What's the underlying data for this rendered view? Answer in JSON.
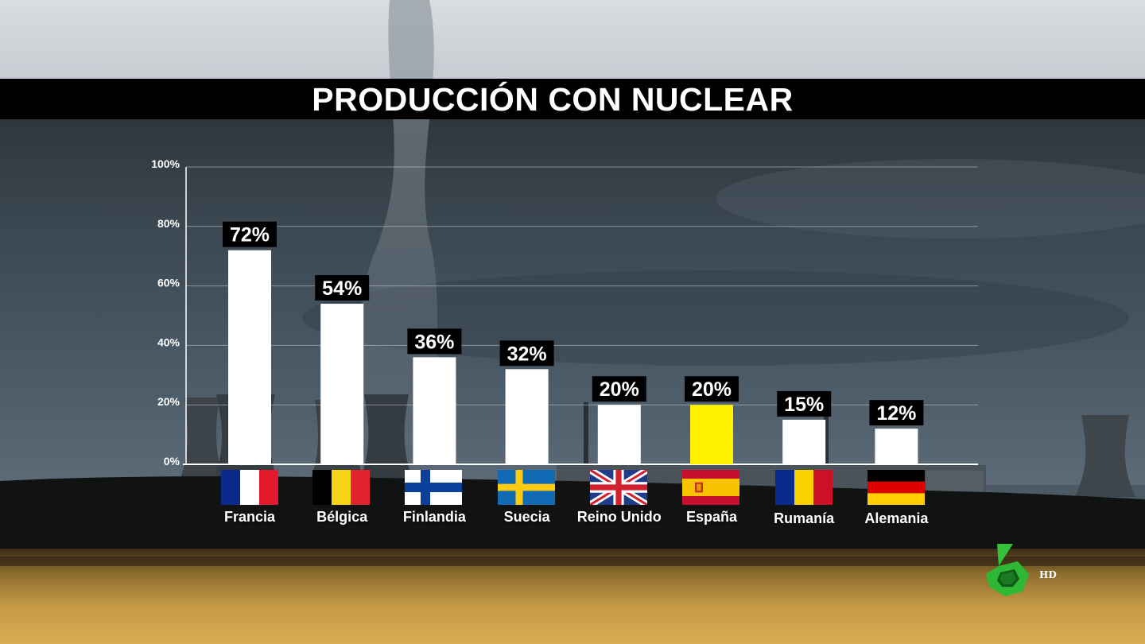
{
  "title": "PRODUCCIÓN CON NUCLEAR",
  "chart_data": {
    "type": "bar",
    "categories": [
      "Francia",
      "Bélgica",
      "Finlandia",
      "Suecia",
      "Reino Unido",
      "España",
      "Rumanía",
      "Alemania"
    ],
    "values": [
      72,
      54,
      36,
      32,
      20,
      20,
      15,
      12
    ],
    "value_labels": [
      "72%",
      "54%",
      "36%",
      "32%",
      "20%",
      "20%",
      "15%",
      "12%"
    ],
    "highlight_category": "España",
    "bar_color": "#ffffff",
    "highlight_color": "#fff200",
    "ylim": [
      0,
      100
    ],
    "yticks": [
      0,
      20,
      40,
      60,
      80,
      100
    ],
    "ytick_labels": [
      "0%",
      "20%",
      "40%",
      "60%",
      "80%",
      "100%"
    ],
    "grid": true,
    "xlabel": "",
    "ylabel": ""
  },
  "flags": [
    {
      "country": "Francia",
      "icon": "flag-france-icon"
    },
    {
      "country": "Bélgica",
      "icon": "flag-belgium-icon"
    },
    {
      "country": "Finlandia",
      "icon": "flag-finland-icon"
    },
    {
      "country": "Suecia",
      "icon": "flag-sweden-icon"
    },
    {
      "country": "Reino Unido",
      "icon": "flag-uk-icon"
    },
    {
      "country": "España",
      "icon": "flag-spain-icon"
    },
    {
      "country": "Rumanía",
      "icon": "flag-romania-icon"
    },
    {
      "country": "Alemania",
      "icon": "flag-germany-icon"
    }
  ],
  "channel": {
    "logo_icon": "lasexta-logo-icon",
    "hd_label": "HD",
    "logo_color": "#2ecc40"
  }
}
